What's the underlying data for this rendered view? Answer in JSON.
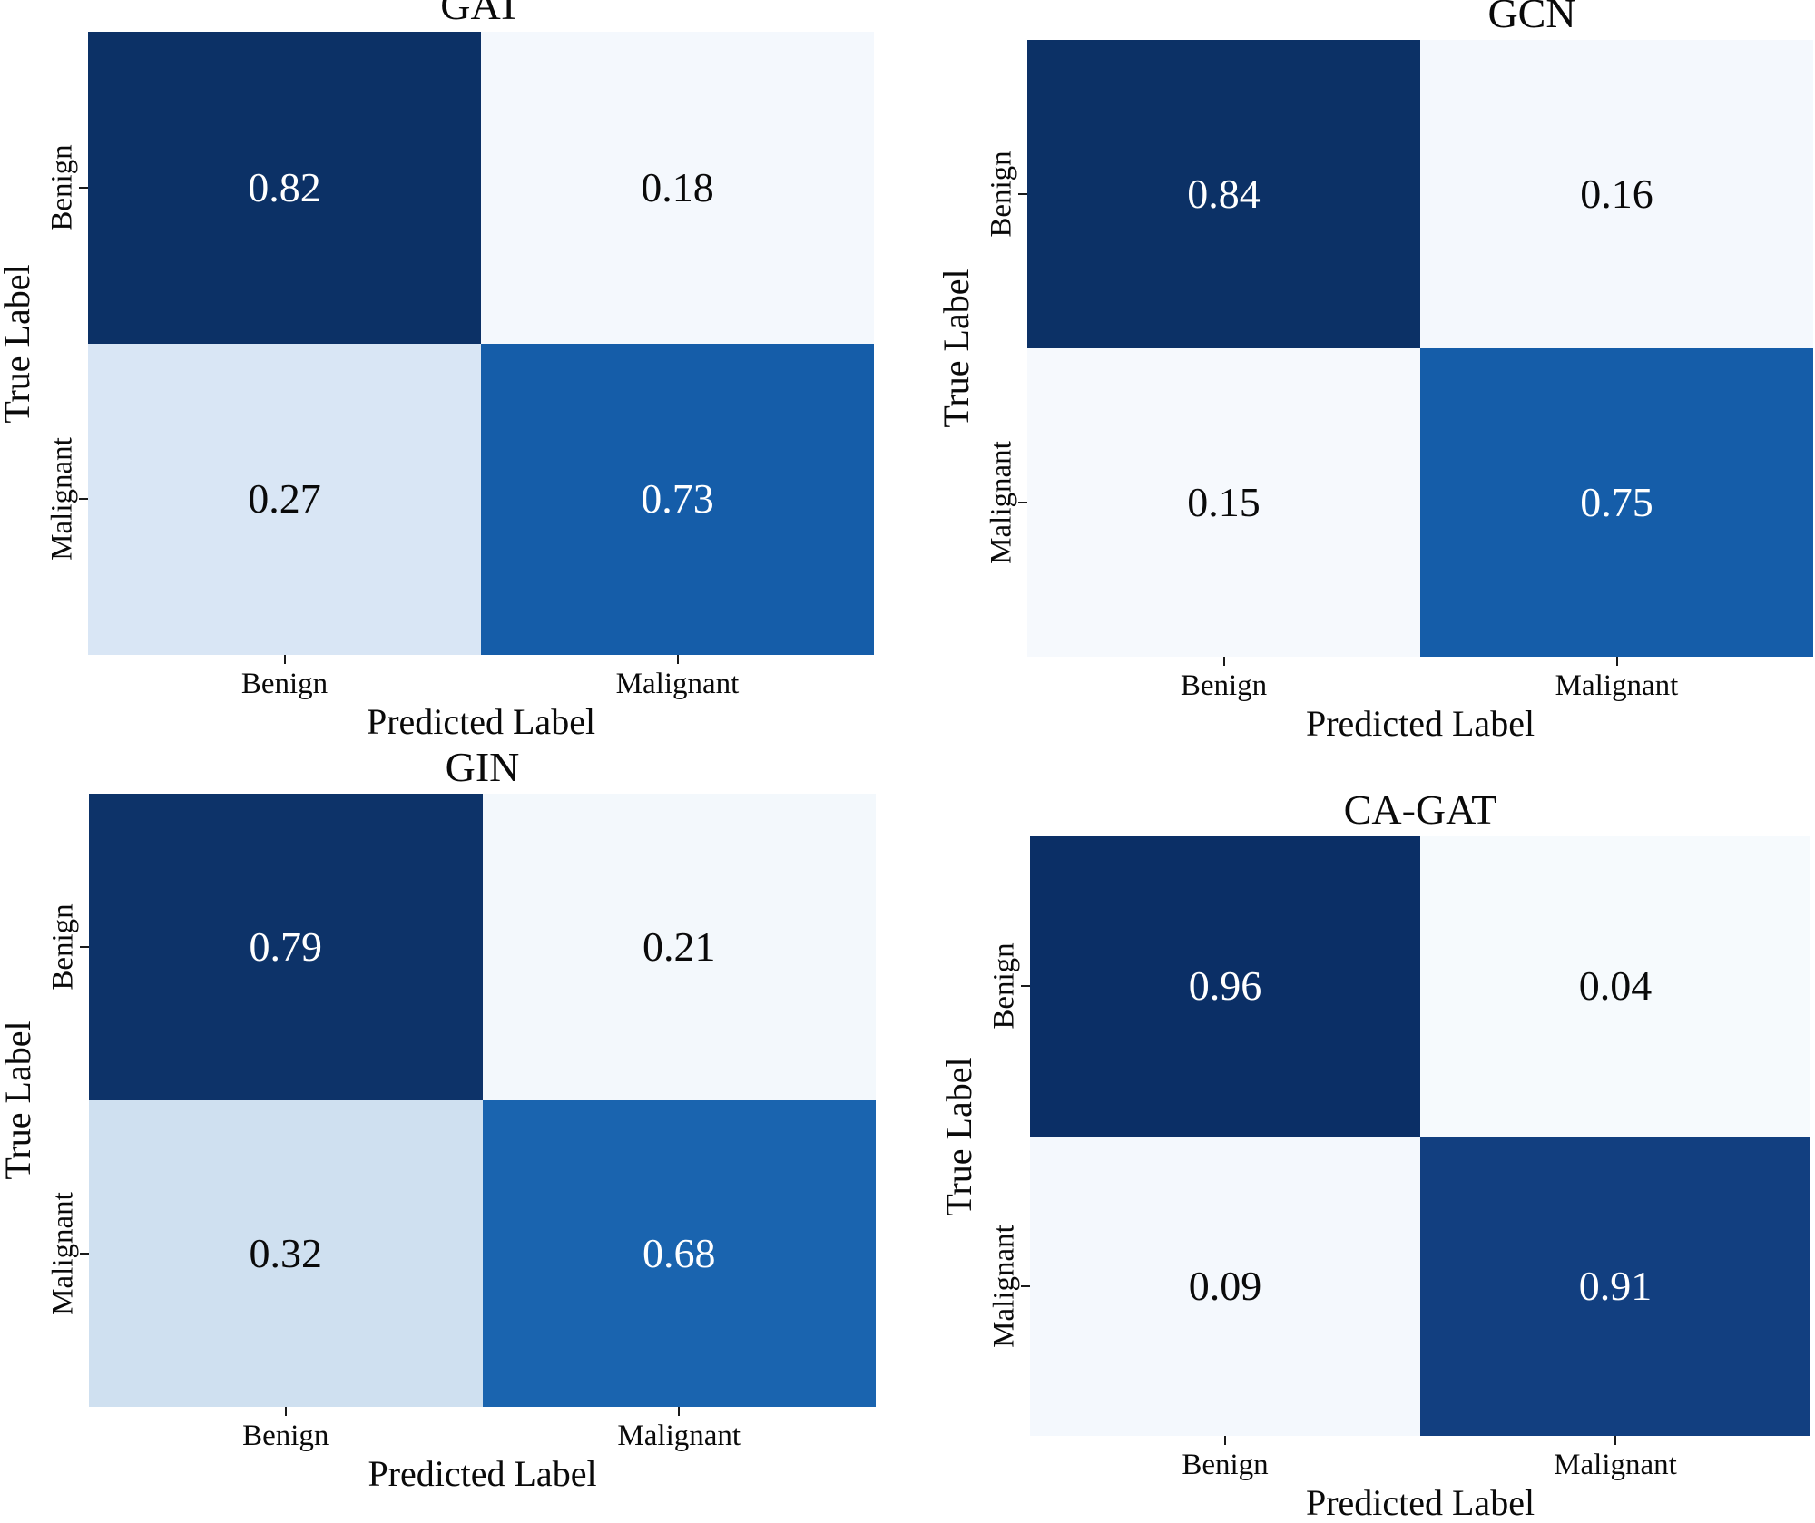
{
  "figure": {
    "y_axis_label": "True Label",
    "x_axis_label": "Predicted Label",
    "class_labels": [
      "Benign",
      "Malignant"
    ]
  },
  "chart_data": [
    {
      "type": "heatmap",
      "title": "GAT",
      "xlabel": "Predicted Label",
      "ylabel": "True Label",
      "row_labels": [
        "Benign",
        "Malignant"
      ],
      "col_labels": [
        "Benign",
        "Malignant"
      ],
      "values": [
        [
          0.82,
          0.18
        ],
        [
          0.27,
          0.73
        ]
      ],
      "cells_text": [
        [
          "0.82",
          "0.18"
        ],
        [
          "0.27",
          "0.73"
        ]
      ],
      "cell_colors": [
        [
          "#0c3166",
          "#f4f8fd"
        ],
        [
          "#d9e6f5",
          "#155da9"
        ]
      ],
      "text_colors": [
        [
          "#ffffff",
          "#0a0a0a"
        ],
        [
          "#0a0a0a",
          "#ffffff"
        ]
      ],
      "colormap": "Blues",
      "legend": "none",
      "grid": false
    },
    {
      "type": "heatmap",
      "title": "GCN",
      "xlabel": "Predicted Label",
      "ylabel": "True Label",
      "row_labels": [
        "Benign",
        "Malignant"
      ],
      "col_labels": [
        "Benign",
        "Malignant"
      ],
      "values": [
        [
          0.84,
          0.16
        ],
        [
          0.15,
          0.75
        ]
      ],
      "cells_text": [
        [
          "0.84",
          "0.16"
        ],
        [
          "0.15",
          "0.75"
        ]
      ],
      "cell_colors": [
        [
          "#0c3166",
          "#f4f8fd"
        ],
        [
          "#f6f9fd",
          "#155da9"
        ]
      ],
      "text_colors": [
        [
          "#ffffff",
          "#0a0a0a"
        ],
        [
          "#0a0a0a",
          "#ffffff"
        ]
      ],
      "colormap": "Blues",
      "legend": "none",
      "grid": false
    },
    {
      "type": "heatmap",
      "title": "GIN",
      "xlabel": "Predicted Label",
      "ylabel": "True Label",
      "row_labels": [
        "Benign",
        "Malignant"
      ],
      "col_labels": [
        "Benign",
        "Malignant"
      ],
      "values": [
        [
          0.79,
          0.21
        ],
        [
          0.32,
          0.68
        ]
      ],
      "cells_text": [
        [
          "0.79",
          "0.21"
        ],
        [
          "0.32",
          "0.68"
        ]
      ],
      "cell_colors": [
        [
          "#0d3369",
          "#f3f8fc"
        ],
        [
          "#cfe0f0",
          "#1a64af"
        ]
      ],
      "text_colors": [
        [
          "#ffffff",
          "#0a0a0a"
        ],
        [
          "#0a0a0a",
          "#ffffff"
        ]
      ],
      "colormap": "Blues",
      "legend": "none",
      "grid": false
    },
    {
      "type": "heatmap",
      "title": "CA-GAT",
      "xlabel": "Predicted Label",
      "ylabel": "True Label",
      "row_labels": [
        "Benign",
        "Malignant"
      ],
      "col_labels": [
        "Benign",
        "Malignant"
      ],
      "values": [
        [
          0.96,
          0.04
        ],
        [
          0.09,
          0.91
        ]
      ],
      "cells_text": [
        [
          "0.96",
          "0.04"
        ],
        [
          "0.09",
          "0.91"
        ]
      ],
      "cell_colors": [
        [
          "#0b2f66",
          "#f6fafd"
        ],
        [
          "#f4f8fd",
          "#123f80"
        ]
      ],
      "text_colors": [
        [
          "#ffffff",
          "#0a0a0a"
        ],
        [
          "#0a0a0a",
          "#ffffff"
        ]
      ],
      "colormap": "Blues",
      "legend": "none",
      "grid": false
    }
  ]
}
